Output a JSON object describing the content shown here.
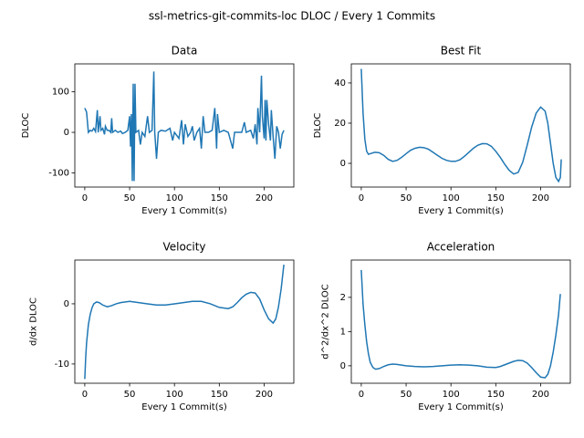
{
  "title": "ssl-metrics-git-commits-loc DLOC / Every 1 Commits",
  "chart_data": [
    {
      "type": "line",
      "title": "Data",
      "x_label": "Every 1 Commit(s)",
      "y_label": "DLOC",
      "xlim": [
        -11.1,
        233.1
      ],
      "ylim": [
        -135,
        169
      ],
      "xticks": [
        0,
        50,
        100,
        150,
        200
      ],
      "yticks": [
        -100,
        0,
        100
      ],
      "series": [
        {
          "color": "#1f77b4",
          "x": [
            0,
            2,
            4,
            6,
            8,
            10,
            12,
            14,
            15,
            17,
            18,
            20,
            22,
            23,
            25,
            27,
            29,
            30,
            31,
            34,
            37,
            40,
            42,
            45,
            48,
            50,
            51,
            52,
            53,
            54,
            55,
            56,
            57,
            60,
            62,
            64,
            67,
            70,
            72,
            75,
            77,
            78,
            80,
            82,
            85,
            90,
            95,
            98,
            100,
            105,
            108,
            110,
            112,
            115,
            118,
            120,
            122,
            125,
            128,
            130,
            132,
            134,
            138,
            142,
            145,
            147,
            148,
            150,
            155,
            160,
            165,
            167,
            170,
            175,
            178,
            180,
            185,
            188,
            190,
            192,
            193,
            195,
            197,
            198,
            200,
            201,
            202,
            203,
            205,
            207,
            208,
            210,
            212,
            214,
            216,
            218,
            220,
            222
          ],
          "values": [
            60,
            50,
            0,
            5,
            3,
            10,
            2,
            55,
            0,
            40,
            5,
            10,
            -5,
            15,
            5,
            5,
            0,
            35,
            0,
            5,
            0,
            3,
            -3,
            0,
            5,
            40,
            -35,
            45,
            -120,
            120,
            -120,
            120,
            0,
            5,
            -30,
            0,
            -10,
            40,
            0,
            5,
            150,
            0,
            -65,
            0,
            5,
            3,
            10,
            -20,
            0,
            -15,
            30,
            -30,
            20,
            -10,
            0,
            15,
            -20,
            0,
            10,
            -40,
            40,
            0,
            0,
            5,
            60,
            -40,
            45,
            0,
            5,
            0,
            -40,
            0,
            0,
            0,
            25,
            0,
            5,
            -15,
            20,
            -30,
            60,
            0,
            140,
            40,
            -15,
            80,
            -20,
            80,
            20,
            -20,
            55,
            -10,
            -65,
            15,
            0,
            -40,
            -5,
            5
          ]
        }
      ]
    },
    {
      "type": "line",
      "title": "Best Fit",
      "x_label": "Every 1 Commit(s)",
      "y_label": "DLOC",
      "xlim": [
        -11.1,
        233.1
      ],
      "ylim": [
        -11.8,
        49.5
      ],
      "xticks": [
        0,
        50,
        100,
        150,
        200
      ],
      "yticks": [
        0,
        20,
        40
      ],
      "series": [
        {
          "color": "#1f77b4",
          "x": [
            0,
            2,
            4,
            6,
            8,
            10,
            15,
            20,
            25,
            30,
            35,
            40,
            45,
            50,
            55,
            60,
            65,
            70,
            75,
            80,
            85,
            90,
            95,
            100,
            105,
            110,
            115,
            120,
            125,
            130,
            135,
            140,
            145,
            150,
            155,
            160,
            165,
            170,
            175,
            180,
            185,
            190,
            195,
            200,
            205,
            208,
            211,
            214,
            217,
            220,
            222,
            223
          ],
          "values": [
            47,
            25,
            12,
            6,
            4.5,
            4.8,
            5.5,
            5.3,
            4,
            2,
            1,
            1.5,
            3,
            4.8,
            6.5,
            7.5,
            8,
            7.8,
            7,
            5.5,
            4,
            2.5,
            1.5,
            1,
            1,
            1.8,
            3.5,
            5.5,
            7.5,
            9,
            9.8,
            9.7,
            8.5,
            6,
            3,
            -0.5,
            -3.5,
            -5.3,
            -4.5,
            0.5,
            9,
            18,
            25,
            28,
            26,
            20,
            10,
            0,
            -7,
            -9,
            -7,
            2
          ]
        }
      ]
    },
    {
      "type": "line",
      "title": "Velocity",
      "x_label": "Every 1 Commit(s)",
      "y_label": "d/dx DLOC",
      "xlim": [
        -11.1,
        233.1
      ],
      "ylim": [
        -13.2,
        7.27
      ],
      "xticks": [
        0,
        50,
        100,
        150,
        200
      ],
      "yticks": [
        -10,
        0
      ],
      "series": [
        {
          "color": "#1f77b4",
          "x": [
            0,
            1,
            2,
            4,
            6,
            8,
            10,
            13,
            16,
            20,
            25,
            30,
            35,
            40,
            50,
            60,
            70,
            80,
            90,
            100,
            110,
            120,
            130,
            140,
            150,
            160,
            165,
            170,
            175,
            180,
            185,
            190,
            195,
            200,
            205,
            210,
            213,
            216,
            219,
            222
          ],
          "values": [
            -12.5,
            -9,
            -6.5,
            -3.5,
            -1.8,
            -0.7,
            0,
            0.3,
            0.2,
            -0.2,
            -0.5,
            -0.3,
            0,
            0.2,
            0.4,
            0.2,
            0,
            -0.2,
            -0.2,
            0,
            0.2,
            0.4,
            0.4,
            0,
            -0.6,
            -0.8,
            -0.5,
            0.2,
            1,
            1.6,
            1.9,
            1.8,
            0.8,
            -1,
            -2.5,
            -3.2,
            -2.5,
            -0.5,
            2.5,
            6.5
          ]
        }
      ]
    },
    {
      "type": "line",
      "title": "Acceleration",
      "x_label": "Every 1 Commit(s)",
      "y_label": "d^2/dx^2 DLOC",
      "xlim": [
        -11.1,
        233.1
      ],
      "ylim": [
        -0.51,
        3.09
      ],
      "xticks": [
        0,
        50,
        100,
        150,
        200
      ],
      "yticks": [
        0,
        1,
        2
      ],
      "series": [
        {
          "color": "#1f77b4",
          "x": [
            0,
            2,
            4,
            6,
            8,
            10,
            13,
            16,
            20,
            25,
            30,
            35,
            40,
            50,
            60,
            70,
            80,
            90,
            100,
            110,
            120,
            130,
            140,
            150,
            155,
            160,
            165,
            170,
            175,
            180,
            185,
            190,
            195,
            200,
            205,
            208,
            211,
            214,
            217,
            220,
            222
          ],
          "values": [
            2.8,
            1.8,
            1.2,
            0.7,
            0.35,
            0.1,
            -0.05,
            -0.1,
            -0.08,
            -0.02,
            0.03,
            0.05,
            0.04,
            0,
            -0.02,
            -0.03,
            -0.02,
            0,
            0.02,
            0.03,
            0.02,
            0,
            -0.04,
            -0.05,
            -0.02,
            0.03,
            0.08,
            0.13,
            0.16,
            0.15,
            0.08,
            -0.05,
            -0.2,
            -0.33,
            -0.35,
            -0.25,
            0,
            0.4,
            0.9,
            1.5,
            2.1
          ]
        }
      ]
    }
  ]
}
